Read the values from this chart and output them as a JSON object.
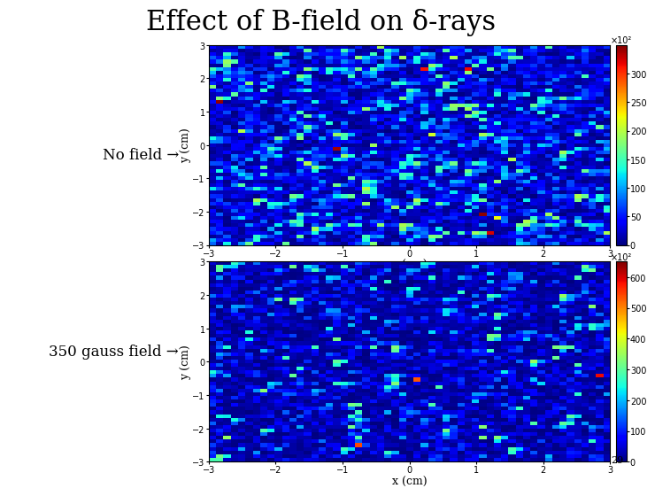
{
  "title": "Effect of B-field on δ-rays",
  "title_fontsize": 22,
  "label1": "No field →",
  "label2": "350 gauss field →",
  "xlabel": "x (cm)",
  "ylabel": "y (cm)",
  "xlim": [
    -3,
    3
  ],
  "ylim": [
    -3,
    3
  ],
  "xticks": [
    -3,
    -2,
    -1,
    0,
    1,
    2,
    3
  ],
  "yticks": [
    -3,
    -2,
    -1,
    0,
    1,
    2,
    3
  ],
  "colorbar1_max": 350,
  "colorbar2_max": 650,
  "colorbar_label": "×10²",
  "colorbar1_ticks": [
    0,
    50,
    100,
    150,
    200,
    250,
    300
  ],
  "colorbar2_ticks": [
    0,
    100,
    200,
    300,
    400,
    500,
    600
  ],
  "background_color": "#ffffff",
  "page_number": "29",
  "seed1": 42,
  "seed2": 123,
  "grid_size": 55,
  "label_fontsize": 12,
  "tick_fontsize": 7,
  "axis_label_fontsize": 9
}
